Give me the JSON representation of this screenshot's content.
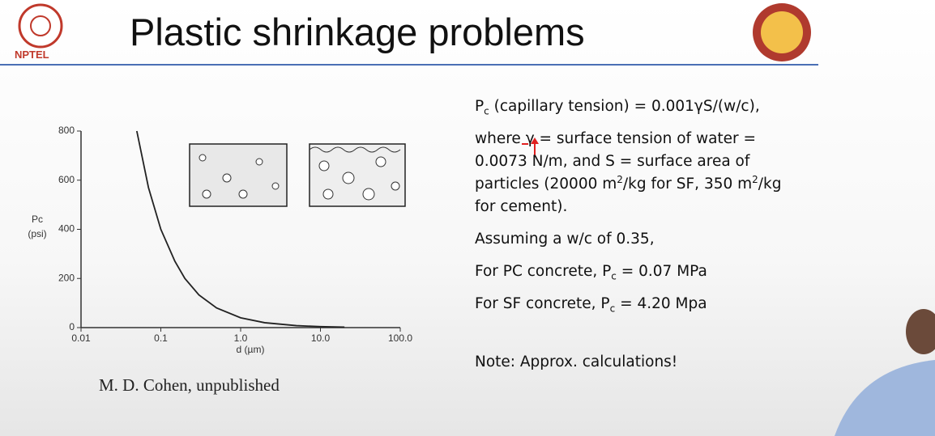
{
  "header": {
    "title": "Plastic shrinkage problems",
    "logo_left": "NPTEL"
  },
  "chart_data": {
    "type": "line",
    "x_log": true,
    "y_label": [
      "Pc",
      "(psi)"
    ],
    "x_label": "d (µm)",
    "xlim": [
      0.01,
      100
    ],
    "xticks": [
      0.01,
      0.1,
      {
        "value": 1,
        "label": "1.0"
      },
      {
        "value": 10,
        "label": "10.0"
      },
      {
        "value": 100,
        "label": "100.0"
      }
    ],
    "ylim": [
      0,
      800
    ],
    "yticks": [
      0,
      200,
      400,
      600,
      800
    ],
    "series": [
      {
        "color": "#222222",
        "x": [
          0.05,
          0.07,
          0.1,
          0.15,
          0.2,
          0.3,
          0.5,
          1,
          2,
          5,
          10,
          20
        ],
        "values": [
          800,
          570,
          400,
          270,
          200,
          133,
          80,
          40,
          20,
          8,
          4,
          2
        ]
      }
    ]
  },
  "caption": "M. D. Cohen, unpublished",
  "notes": [
    [
      "P",
      "c",
      " (capillary tension) = 0.001γS/(w/c),"
    ],
    [
      "where γ = surface tension of water = 0.0073 N/m, and S = surface area of particles (20000 m",
      "2",
      "/kg for SF, 350 m",
      "2",
      "/kg for cement)."
    ],
    [
      "Assuming a w/c of 0.35,"
    ],
    [
      "For PC concrete, P",
      "c",
      " = 0.07 MPa"
    ],
    [
      "For SF concrete, P",
      "c",
      " = 4.20 Mpa"
    ],
    [
      "Note: Approx. calculations!"
    ]
  ]
}
